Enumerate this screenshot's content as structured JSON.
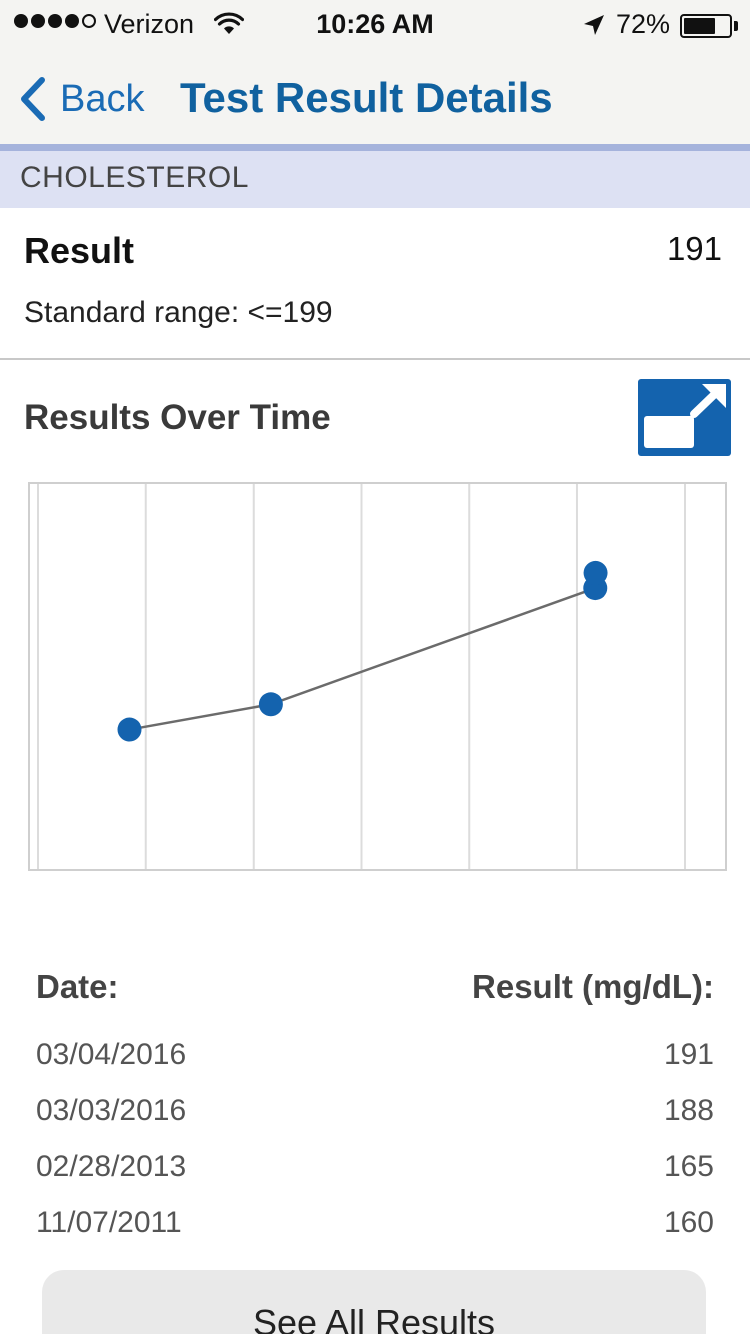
{
  "status_bar": {
    "carrier": "Verizon",
    "time": "10:26 AM",
    "battery": "72%",
    "battery_level": 0.72,
    "signal_bars": 4,
    "signal_max": 5
  },
  "nav": {
    "back_label": "Back",
    "title": "Test Result Details"
  },
  "section": {
    "name": "CHOLESTEROL"
  },
  "result": {
    "label": "Result",
    "value": "191",
    "standard_range": "Standard range: <=199"
  },
  "results_over_time": {
    "title": "Results Over Time"
  },
  "chart_data": {
    "type": "line",
    "title": "",
    "xlabel": "",
    "ylabel": "",
    "x": [
      "11/07/2011",
      "02/28/2013",
      "03/03/2016",
      "03/04/2016"
    ],
    "values": [
      160,
      165,
      188,
      191
    ],
    "ylim": [
      132,
      209
    ],
    "grid": "vertical",
    "colors": {
      "line": "#6b6b6b",
      "point": "#1463ae",
      "grid": "#dcdcdc"
    }
  },
  "table": {
    "header_date": "Date:",
    "header_result": "Result (mg/dL):",
    "rows": [
      {
        "date": "03/04/2016",
        "value": "191"
      },
      {
        "date": "03/03/2016",
        "value": "188"
      },
      {
        "date": "02/28/2013",
        "value": "165"
      },
      {
        "date": "11/07/2011",
        "value": "160"
      }
    ]
  },
  "see_all_label": "See All Results",
  "colors": {
    "accent": "#1463ae",
    "title_blue": "#10619f",
    "section_bg": "#dde1f3",
    "section_border": "#a5b3dc"
  },
  "icons": {
    "back": "chevron-left-icon",
    "expand": "expand-icon",
    "wifi": "wifi-icon",
    "location": "location-arrow-icon",
    "battery": "battery-icon"
  }
}
